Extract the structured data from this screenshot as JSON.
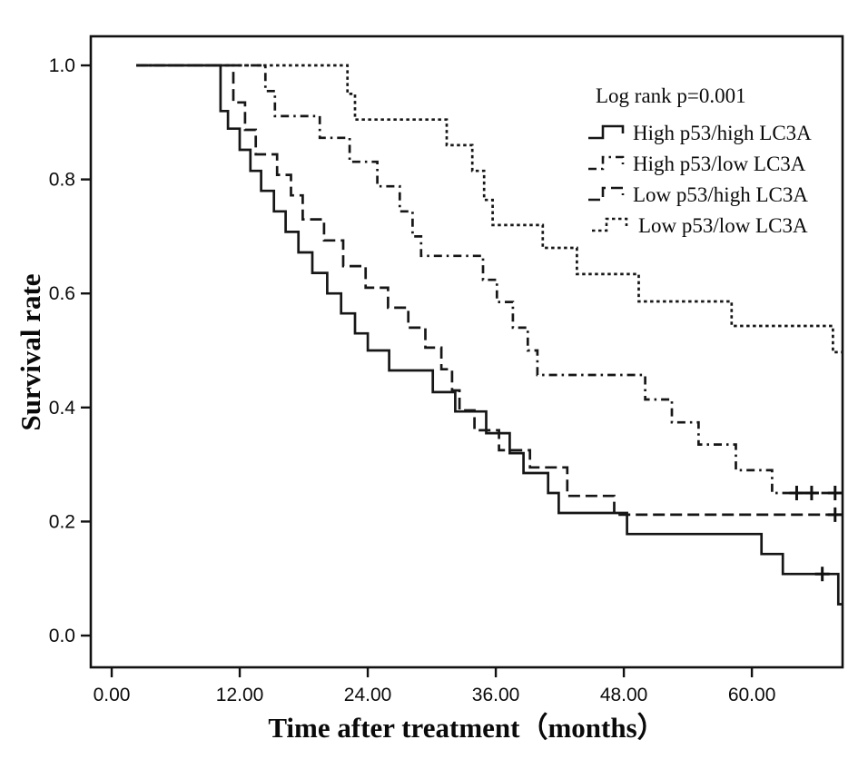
{
  "figure": {
    "kind": "kaplan-meier-survival-plot",
    "background_color": "#ffffff",
    "line_color": "#161616"
  },
  "legend": {
    "title": "Log rank p=0.001",
    "entries": [
      {
        "label": "High p53/high LC3A",
        "style": "solid"
      },
      {
        "label": "High p53/low  LC3A",
        "style": "dash-dot"
      },
      {
        "label": "Low p53/high LC3A",
        "style": "long-dash"
      },
      {
        "label": "Low p53/low LC3A",
        "style": "short-dash"
      }
    ]
  },
  "chart_data": {
    "type": "line",
    "subtype": "kaplan-meier-step",
    "title": "",
    "xlabel": "Time after treatment（months）",
    "ylabel": "Survival rate",
    "annotation": "Log rank p=0.001",
    "xlim": [
      -1.96,
      68.5
    ],
    "ylim": [
      -0.0557,
      1.051
    ],
    "x_ticks": [
      0,
      12,
      24,
      36,
      48,
      60
    ],
    "x_tick_labels": [
      "0.00",
      "12.00",
      "24.00",
      "36.00",
      "48.00",
      "60.00"
    ],
    "y_ticks": [
      1.0,
      0.8,
      0.6,
      0.4,
      0.2,
      0.0
    ],
    "y_tick_labels": [
      "1.0",
      "0.8",
      "0.6",
      "0.4",
      "0.2",
      "0.0"
    ],
    "grid": false,
    "legend_position": "upper-right-inside",
    "series": [
      {
        "name": "Low p53/low LC3A",
        "line_style": "short-dash",
        "start": [
          2.3,
          1.0
        ],
        "end_time": 68.5,
        "steps": [
          [
            22.1,
            0.95
          ],
          [
            22.8,
            0.905
          ],
          [
            31.4,
            0.86
          ],
          [
            33.8,
            0.815
          ],
          [
            34.9,
            0.764
          ],
          [
            35.7,
            0.72
          ],
          [
            40.4,
            0.68
          ],
          [
            43.6,
            0.634
          ],
          [
            49.4,
            0.586
          ],
          [
            58.1,
            0.543
          ],
          [
            67.6,
            0.497
          ]
        ],
        "censors": []
      },
      {
        "name": "High p53/low  LC3A",
        "line_style": "dash-dot",
        "start": [
          2.3,
          1.0
        ],
        "end_time": 68.5,
        "steps": [
          [
            14.4,
            0.955
          ],
          [
            15.3,
            0.911
          ],
          [
            19.5,
            0.873
          ],
          [
            22.3,
            0.831
          ],
          [
            24.9,
            0.788
          ],
          [
            27.0,
            0.744
          ],
          [
            28.2,
            0.7
          ],
          [
            29.0,
            0.666
          ],
          [
            34.8,
            0.624
          ],
          [
            36.1,
            0.585
          ],
          [
            37.6,
            0.54
          ],
          [
            39.0,
            0.5
          ],
          [
            39.9,
            0.457
          ],
          [
            50.0,
            0.414
          ],
          [
            52.5,
            0.374
          ],
          [
            55.0,
            0.335
          ],
          [
            58.5,
            0.29
          ],
          [
            61.9,
            0.25
          ]
        ],
        "censors": [
          [
            64.2,
            0.25
          ],
          [
            65.6,
            0.25
          ],
          [
            67.8,
            0.25
          ]
        ]
      },
      {
        "name": "Low p53/high LC3A",
        "line_style": "long-dash",
        "start": [
          2.3,
          1.0
        ],
        "end_time": 68.5,
        "steps": [
          [
            11.4,
            0.935
          ],
          [
            12.5,
            0.887
          ],
          [
            13.5,
            0.844
          ],
          [
            15.5,
            0.808
          ],
          [
            16.8,
            0.772
          ],
          [
            17.9,
            0.73
          ],
          [
            19.9,
            0.693
          ],
          [
            21.7,
            0.648
          ],
          [
            23.8,
            0.61
          ],
          [
            25.9,
            0.575
          ],
          [
            27.8,
            0.54
          ],
          [
            29.4,
            0.505
          ],
          [
            30.9,
            0.467
          ],
          [
            31.9,
            0.43
          ],
          [
            32.6,
            0.395
          ],
          [
            34.0,
            0.36
          ],
          [
            36.3,
            0.325
          ],
          [
            39.2,
            0.295
          ],
          [
            42.7,
            0.245
          ],
          [
            47.1,
            0.212
          ]
        ],
        "censors": [
          [
            67.8,
            0.212
          ]
        ]
      },
      {
        "name": "High p53/high LC3A",
        "line_style": "solid",
        "start": [
          2.3,
          1.0
        ],
        "end_time": 68.5,
        "steps": [
          [
            10.2,
            0.92
          ],
          [
            10.9,
            0.889
          ],
          [
            12.0,
            0.852
          ],
          [
            13.0,
            0.815
          ],
          [
            14.0,
            0.78
          ],
          [
            15.2,
            0.744
          ],
          [
            16.3,
            0.708
          ],
          [
            17.5,
            0.672
          ],
          [
            18.8,
            0.636
          ],
          [
            20.2,
            0.6
          ],
          [
            21.5,
            0.565
          ],
          [
            22.8,
            0.53
          ],
          [
            24.0,
            0.5
          ],
          [
            26.0,
            0.465
          ],
          [
            30.1,
            0.427
          ],
          [
            32.2,
            0.393
          ],
          [
            35.1,
            0.355
          ],
          [
            37.3,
            0.32
          ],
          [
            38.6,
            0.285
          ],
          [
            40.9,
            0.25
          ],
          [
            41.9,
            0.215
          ],
          [
            48.3,
            0.178
          ],
          [
            60.9,
            0.143
          ],
          [
            62.9,
            0.108
          ],
          [
            68.1,
            0.055
          ]
        ],
        "censors": [
          [
            66.6,
            0.108
          ]
        ]
      }
    ]
  }
}
